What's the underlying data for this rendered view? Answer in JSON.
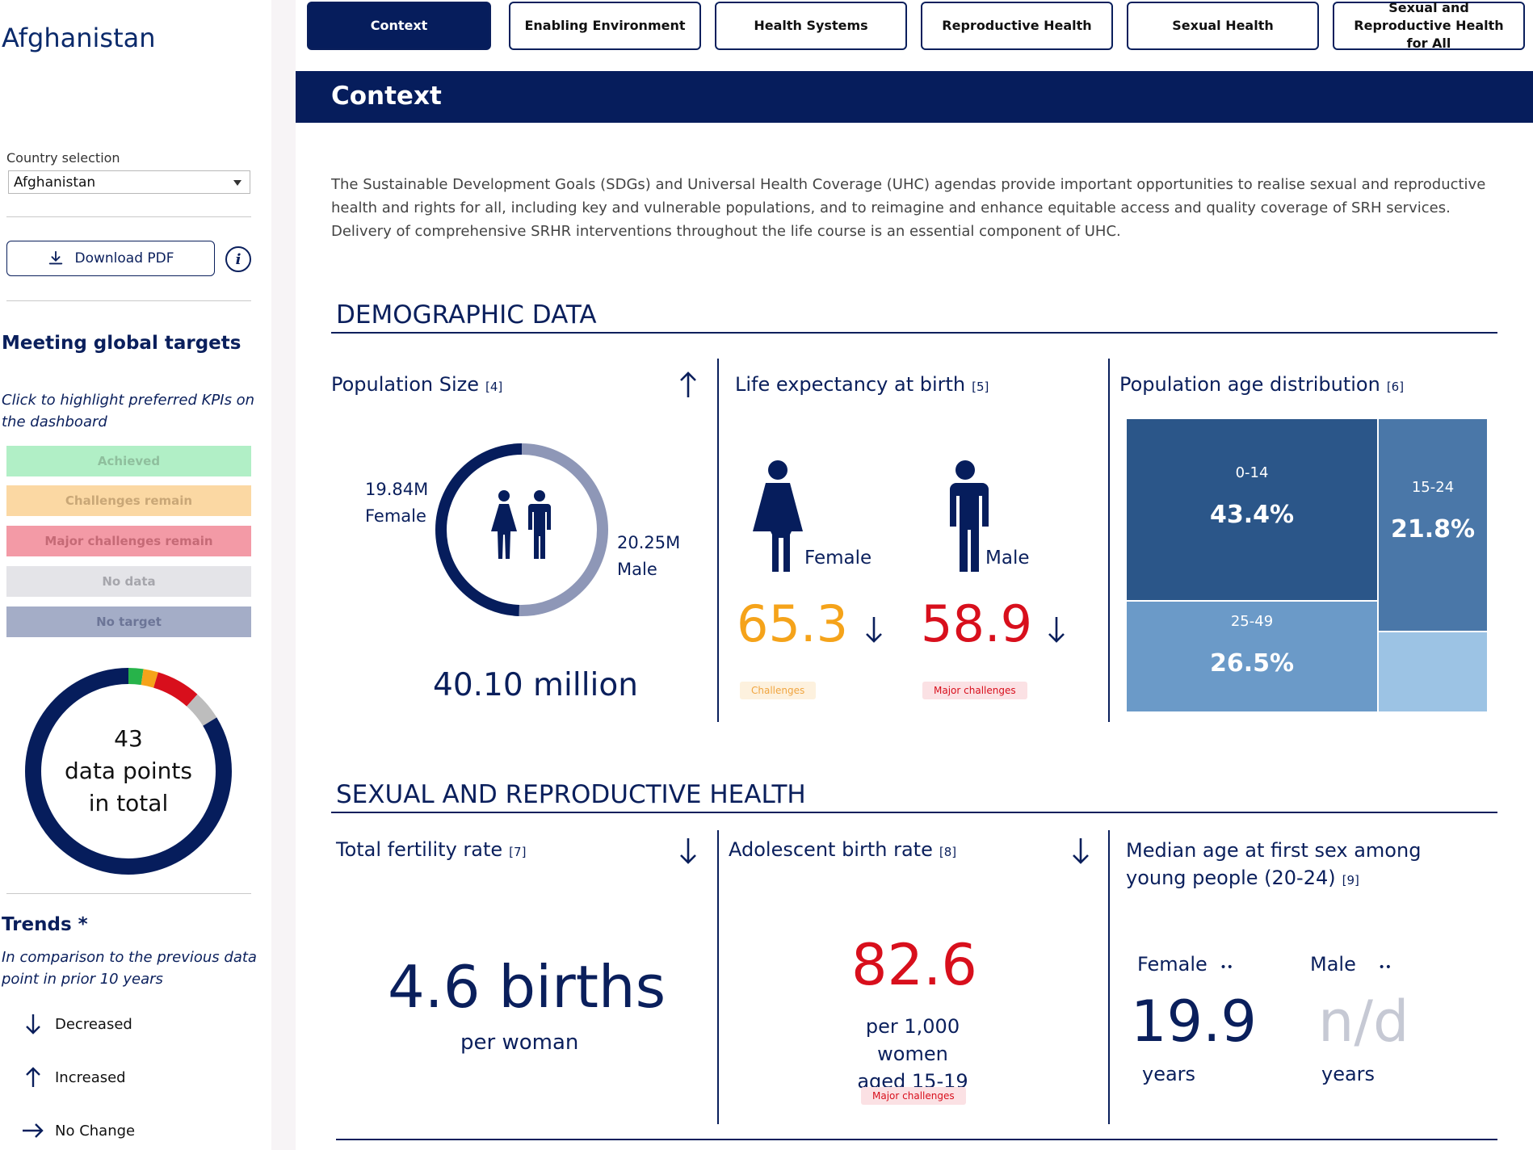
{
  "sidebar": {
    "country_title": "Afghanistan",
    "country_label": "Country selection",
    "country_value": "Afghanistan",
    "download_label": "Download  PDF",
    "info_label": "i",
    "targets_heading": "Meeting global targets",
    "targets_hint_1": "Click to highlight preferred KPIs on",
    "targets_hint_2": "the dashboard",
    "legend": [
      {
        "label": "Achieved",
        "bg": "#b1efc6",
        "fg": "#8fbf9d"
      },
      {
        "label": "Challenges remain",
        "bg": "#fbd8a3",
        "fg": "#c9a777"
      },
      {
        "label": "Major challenges remain",
        "bg": "#f39aa6",
        "fg": "#c56a76"
      },
      {
        "label": "No data",
        "bg": "#e4e4e8",
        "fg": "#a6a6ac"
      },
      {
        "label": "No target",
        "bg": "#a4adc7",
        "fg": "#6c7597"
      }
    ],
    "donut": {
      "line1": "43",
      "line2": "data points",
      "line3": "in total",
      "segments": [
        {
          "status": "Achieved",
          "count": 1,
          "color": "#27b34a"
        },
        {
          "status": "Challenges remain",
          "count": 1,
          "color": "#f5a31a"
        },
        {
          "status": "Major challenges remain",
          "count": 3,
          "color": "#d80f1c"
        },
        {
          "status": "No data",
          "count": 2,
          "color": "#bdbdbd"
        },
        {
          "status": "No target",
          "count": 36,
          "color": "#061d5c"
        }
      ]
    },
    "trends_heading": "Trends *",
    "trends_hint_1": "In comparison to the previous data",
    "trends_hint_2": "point in prior 10 years",
    "trends": [
      {
        "icon": "arrow-down-icon",
        "label": "Decreased"
      },
      {
        "icon": "arrow-up-icon",
        "label": "Increased"
      },
      {
        "icon": "arrow-right-icon",
        "label": "No Change"
      }
    ]
  },
  "tabs": [
    {
      "label": "Context",
      "active": true
    },
    {
      "label": "Enabling Environment",
      "active": false
    },
    {
      "label": "Health Systems",
      "active": false
    },
    {
      "label": "Reproductive Health",
      "active": false
    },
    {
      "label": "Sexual Health",
      "active": false
    },
    {
      "label": "Sexual and Reproductive Health for All",
      "active": false
    }
  ],
  "header": {
    "title": "Context"
  },
  "intro": "The Sustainable Development Goals (SDGs) and Universal Health Coverage (UHC) agendas provide important opportunities to realise sexual and reproductive health and rights for all, including key and vulnerable populations, and to reimagine and enhance equitable access and quality coverage of SRH services. Delivery of comprehensive SRHR interventions throughout the life course is an essential component of UHC.",
  "demographic": {
    "heading": "DEMOGRAPHIC DATA",
    "population": {
      "title": "Population Size",
      "ref": "[4]",
      "female_value": "19.84M",
      "female_label": "Female",
      "male_value": "20.25M",
      "male_label": "Male",
      "total": "40.10 million",
      "female_share": 0.495,
      "trend": "arrow-up-icon"
    },
    "life_expectancy": {
      "title": "Life expectancy at birth",
      "ref": "[5]",
      "female_label": "Female",
      "male_label": "Male",
      "female_value": "65.3",
      "male_value": "58.9",
      "female_badge": "Challenges",
      "male_badge": "Major challenges",
      "female_color": "#f5a31a",
      "male_color": "#d80f1c"
    },
    "age_distribution": {
      "title": "Population age distribution",
      "ref": "[6]",
      "groups": [
        {
          "label": "0-14",
          "value": "43.4%",
          "color": "#2b5689"
        },
        {
          "label": "15-24",
          "value": "21.8%",
          "color": "#4a77a8"
        },
        {
          "label": "25-49",
          "value": "26.5%",
          "color": "#6b9ac8"
        },
        {
          "label": "",
          "value": "",
          "color": "#9cc3e4"
        }
      ]
    }
  },
  "srh": {
    "heading": "SEXUAL AND REPRODUCTIVE HEALTH",
    "fertility": {
      "title": "Total fertility rate",
      "ref": "[7]",
      "value": "4.6 births",
      "unit": "per woman",
      "trend": "arrow-down-icon"
    },
    "adolescent": {
      "title": "Adolescent birth rate",
      "ref": "[8]",
      "value": "82.6",
      "unit_1": "per 1,000 women",
      "unit_2": "aged 15-19",
      "badge": "Major challenges",
      "trend": "arrow-down-icon"
    },
    "median_age": {
      "title_1": "Median age at first sex among",
      "title_2": "young people (20-24)",
      "ref": "[9]",
      "female_label": "Female",
      "male_label": "Male",
      "female_value": "19.9",
      "male_value": "n/d",
      "female_unit": "years",
      "male_unit": "years",
      "dots": "••"
    }
  }
}
